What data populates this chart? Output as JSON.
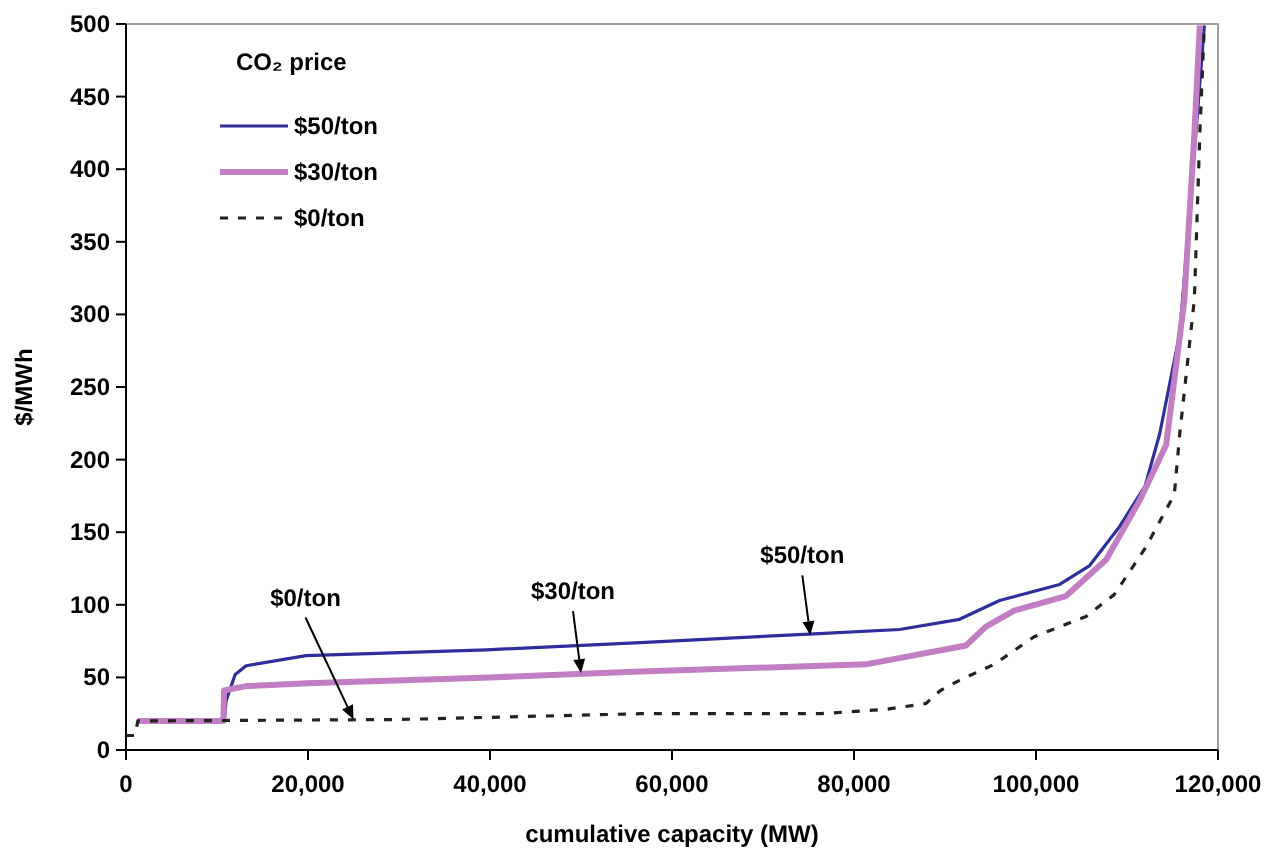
{
  "chart_data": {
    "type": "line",
    "xlabel": "cumulative capacity (MW)",
    "ylabel": "$/MWh",
    "legend_title": "CO₂ price",
    "legend": "top left",
    "grid": false,
    "xlim": [
      0,
      120000
    ],
    "ylim": [
      0,
      500
    ],
    "xticks": [
      {
        "value": 0,
        "label": "0"
      },
      {
        "value": 20000,
        "label": "20,000"
      },
      {
        "value": 40000,
        "label": "40,000"
      },
      {
        "value": 60000,
        "label": "60,000"
      },
      {
        "value": 80000,
        "label": "80,000"
      },
      {
        "value": 100000,
        "label": "100,000"
      },
      {
        "value": 120000,
        "label": "120,000"
      }
    ],
    "yticks": [
      0,
      50,
      100,
      150,
      200,
      250,
      300,
      350,
      400,
      450,
      500
    ],
    "series": [
      {
        "name": "$50/ton",
        "color": "#2e2e9c",
        "line_style": "solid",
        "x": [
          1300,
          10800,
          11000,
          12000,
          13200,
          19800,
          39600,
          56500,
          75600,
          85000,
          91600,
          96000,
          102600,
          105900,
          109200,
          112000,
          113600,
          115800,
          117000,
          118500
        ],
        "values": [
          20,
          20,
          34,
          52,
          58,
          65,
          69,
          74,
          80,
          83,
          90,
          103,
          114,
          127,
          154,
          182,
          218,
          287,
          379,
          499
        ]
      },
      {
        "name": "$30/ton",
        "color": "#c27ec2",
        "line_style": "solid",
        "x": [
          1300,
          10700,
          10770,
          13200,
          20000,
          40000,
          56500,
          81300,
          92300,
          94500,
          97600,
          103300,
          107700,
          111400,
          114300,
          116300,
          117400,
          118000
        ],
        "values": [
          20,
          20,
          41,
          44,
          46,
          50,
          54,
          59,
          72,
          85,
          96,
          106,
          131,
          172,
          210,
          310,
          424,
          499
        ]
      },
      {
        "name": "$0/ton",
        "color": "#222222",
        "line_style": "dashed",
        "x": [
          0,
          1000,
          1300,
          30100,
          56500,
          76300,
          83500,
          87900,
          89500,
          91600,
          95400,
          99800,
          105500,
          108600,
          112100,
          115200,
          115800,
          117400,
          118000,
          118500
        ],
        "values": [
          10,
          10,
          20,
          21,
          25,
          25,
          28,
          32,
          41,
          48,
          59,
          78,
          92,
          107,
          140,
          176,
          218,
          310,
          424,
          499
        ]
      }
    ],
    "annotations": [
      {
        "text": "$0/ton",
        "x": 25000,
        "y": 21
      },
      {
        "text": "$30/ton",
        "x": 50000,
        "y": 53
      },
      {
        "text": "$50/ton",
        "x": 75200,
        "y": 79
      }
    ]
  }
}
